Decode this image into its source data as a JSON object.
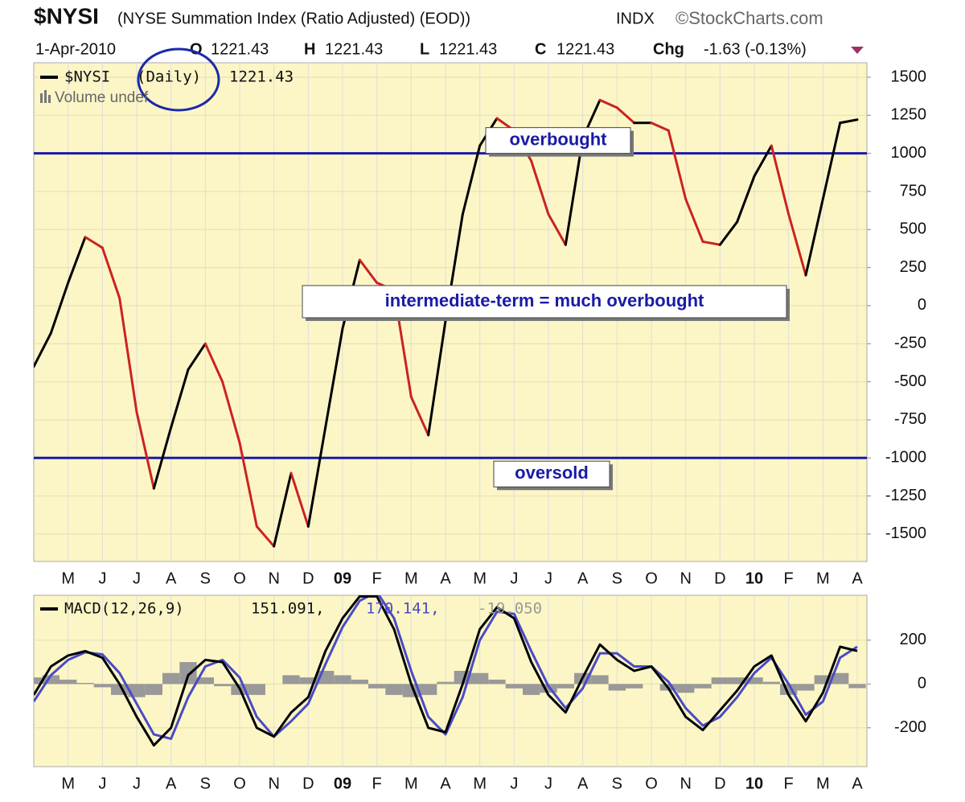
{
  "chart_data": [
    {
      "type": "line",
      "title": "$NYSI",
      "subtitle": "(NYSE Summation Index (Ratio Adjusted) (EOD))",
      "exchange": "INDX",
      "source": "©StockCharts.com",
      "date": "1-Apr-2010",
      "quote": [
        {
          "label": "O",
          "value": 1221.43
        },
        {
          "label": "H",
          "value": 1221.43
        },
        {
          "label": "L",
          "value": 1221.43
        },
        {
          "label": "C",
          "value": 1221.43
        }
      ],
      "change_label": "Chg",
      "change": "-1.63 (-0.13%)",
      "volume_label": "Volume undef",
      "categories": [
        null,
        null,
        "M",
        null,
        "J",
        null,
        "J",
        null,
        "A",
        null,
        "S",
        null,
        "O",
        null,
        "N",
        null,
        "D",
        null,
        "09",
        null,
        "F",
        null,
        "M",
        null,
        "A",
        null,
        "M",
        null,
        "J",
        null,
        "J",
        null,
        "A",
        null,
        "S",
        null,
        "O",
        null,
        "N",
        null,
        "D",
        null,
        "10",
        null,
        "F",
        null,
        "M",
        null,
        "A"
      ],
      "bold_categories": [
        "09",
        "10"
      ],
      "series": [
        {
          "name": "$NYSI",
          "period": "(Daily)",
          "last": 1221.43,
          "up_color": "#000000",
          "down_color": "#cc2222",
          "values": [
            -400,
            -180,
            150,
            450,
            380,
            50,
            -700,
            -1200,
            -800,
            -420,
            -250,
            -500,
            -900,
            -1450,
            -1580,
            -1100,
            -1450,
            -800,
            -150,
            300,
            150,
            100,
            -600,
            -850,
            -100,
            600,
            1050,
            1230,
            1150,
            950,
            600,
            400,
            1100,
            1350,
            1300,
            1200,
            1200,
            1150,
            700,
            420,
            400,
            550,
            850,
            1050,
            600,
            200,
            700,
            1200,
            1221.43
          ]
        }
      ],
      "ylim": [
        -1680,
        1595
      ],
      "yticks": [
        1500,
        1250,
        1000,
        750,
        500,
        250,
        0,
        -250,
        -500,
        -750,
        -1000,
        -1250,
        -1500
      ],
      "reference_lines": [
        {
          "value": 1000,
          "label": "overbought"
        },
        {
          "value": -1000,
          "label": "oversold"
        }
      ],
      "annotation": "intermediate-term = much overbought",
      "grid": true,
      "background": "#fcf6c6"
    },
    {
      "type": "macd",
      "categories": [
        null,
        null,
        "M",
        null,
        "J",
        null,
        "J",
        null,
        "A",
        null,
        "S",
        null,
        "O",
        null,
        "N",
        null,
        "D",
        null,
        "09",
        null,
        "F",
        null,
        "M",
        null,
        "A",
        null,
        "M",
        null,
        "J",
        null,
        "J",
        null,
        "A",
        null,
        "S",
        null,
        "O",
        null,
        "N",
        null,
        "D",
        null,
        "10",
        null,
        "F",
        null,
        "M",
        null,
        "A"
      ],
      "legend_title": "MACD(12,26,9)",
      "series": [
        {
          "name": "151.091,",
          "color": "#000000",
          "values": [
            -50,
            80,
            130,
            150,
            120,
            0,
            -150,
            -280,
            -200,
            40,
            110,
            100,
            -20,
            -200,
            -240,
            -130,
            -60,
            150,
            300,
            400,
            400,
            250,
            0,
            -200,
            -220,
            0,
            250,
            350,
            300,
            100,
            -50,
            -130,
            30,
            180,
            110,
            60,
            80,
            -20,
            -150,
            -210,
            -120,
            -30,
            80,
            130,
            -50,
            -170,
            -40,
            170,
            151.091
          ]
        },
        {
          "name": "170.141,",
          "color": "#4a4ac8",
          "values": [
            -80,
            40,
            110,
            145,
            135,
            50,
            -90,
            -230,
            -250,
            -60,
            80,
            110,
            30,
            -150,
            -240,
            -170,
            -90,
            90,
            260,
            380,
            420,
            300,
            60,
            -150,
            -230,
            -60,
            200,
            330,
            320,
            150,
            -10,
            -110,
            -20,
            140,
            140,
            80,
            80,
            10,
            -110,
            -190,
            -150,
            -60,
            50,
            120,
            0,
            -140,
            -80,
            120,
            170.141
          ]
        },
        {
          "name": "-19.050",
          "color": "#999999",
          "values": [
            30,
            40,
            20,
            5,
            -15,
            -50,
            -60,
            -50,
            50,
            100,
            30,
            -10,
            -50,
            -50,
            0,
            40,
            30,
            60,
            40,
            20,
            -20,
            -50,
            -60,
            -50,
            10,
            60,
            50,
            20,
            -20,
            -50,
            -40,
            -20,
            50,
            40,
            -30,
            -20,
            0,
            -30,
            -40,
            -20,
            30,
            30,
            30,
            10,
            -50,
            -30,
            40,
            50,
            -19.05
          ]
        }
      ],
      "ylim": [
        -377,
        405
      ],
      "yticks": [
        200,
        0,
        -200
      ],
      "grid": true,
      "background": "#fcf6c6"
    }
  ]
}
